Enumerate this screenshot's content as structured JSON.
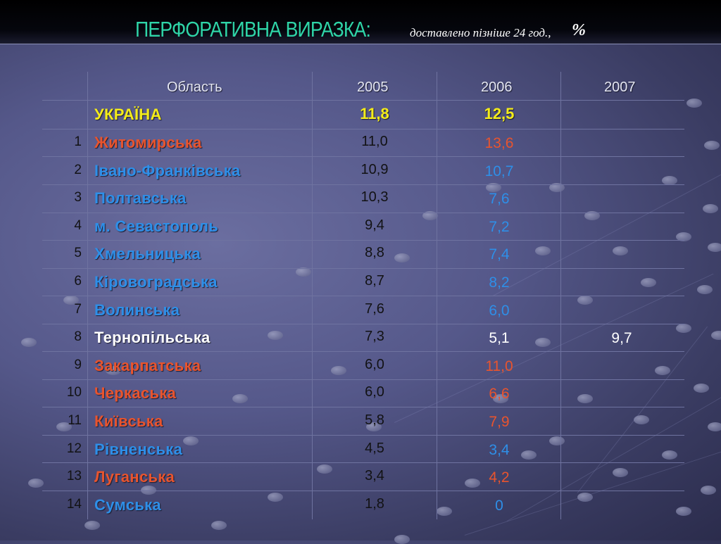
{
  "title": {
    "main": "ПЕРФОРАТИВНА  ВИРАЗКА:",
    "subtitle": "доставлено пізніше 24 год.,",
    "unit": "%"
  },
  "table": {
    "headers": [
      "Область",
      "2005",
      "2006",
      "2007"
    ],
    "total": {
      "name": "УКРАЇНА",
      "v2005": "11,8",
      "v2006": "12,5",
      "v2007": ""
    },
    "rows": [
      {
        "num": "1",
        "name": "Житомирська",
        "v2005": "11,0",
        "v2006": "13,6",
        "v2007": "",
        "name_color": "#e8542e",
        "v2006_color": "#e8542e"
      },
      {
        "num": "2",
        "name": "Івано-Франківська",
        "v2005": "10,9",
        "v2006": "10,7",
        "v2007": "",
        "name_color": "#2e8fe8",
        "v2006_color": "#2e8fe8"
      },
      {
        "num": "3",
        "name": "Полтавська",
        "v2005": "10,3",
        "v2006": "7,6",
        "v2007": "",
        "name_color": "#2e8fe8",
        "v2006_color": "#2e8fe8"
      },
      {
        "num": "4",
        "name": "м. Севастополь",
        "v2005": "9,4",
        "v2006": "7,2",
        "v2007": "",
        "name_color": "#2e8fe8",
        "v2006_color": "#2e8fe8"
      },
      {
        "num": "5",
        "name": "Хмельницька",
        "v2005": "8,8",
        "v2006": "7,4",
        "v2007": "",
        "name_color": "#2e8fe8",
        "v2006_color": "#2e8fe8"
      },
      {
        "num": "6",
        "name": "Кіровоградська",
        "v2005": "8,7",
        "v2006": "8,2",
        "v2007": "",
        "name_color": "#2e8fe8",
        "v2006_color": "#2e8fe8"
      },
      {
        "num": "7",
        "name": "Волинська",
        "v2005": "7,6",
        "v2006": "6,0",
        "v2007": "",
        "name_color": "#2e8fe8",
        "v2006_color": "#2e8fe8"
      },
      {
        "num": "8",
        "name": "Тернопільська",
        "v2005": "7,3",
        "v2006": "5,1",
        "v2007": "9,7",
        "name_color": "#ffffff",
        "v2006_color": "#ffffff"
      },
      {
        "num": "9",
        "name": "Закарпатська",
        "v2005": "6,0",
        "v2006": "11,0",
        "v2007": "",
        "name_color": "#e8542e",
        "v2006_color": "#e8542e"
      },
      {
        "num": "10",
        "name": "Черкаська",
        "v2005": "6,0",
        "v2006": "6,6",
        "v2007": "",
        "name_color": "#e8542e",
        "v2006_color": "#e8542e"
      },
      {
        "num": "11",
        "name": "Київська",
        "v2005": "5,8",
        "v2006": "7,9",
        "v2007": "",
        "name_color": "#e8542e",
        "v2006_color": "#e8542e"
      },
      {
        "num": "12",
        "name": "Рівненська",
        "v2005": "4,5",
        "v2006": "3,4",
        "v2007": "",
        "name_color": "#2e8fe8",
        "v2006_color": "#2e8fe8"
      },
      {
        "num": "13",
        "name": "Луганська",
        "v2005": "3,4",
        "v2006": "4,2",
        "v2007": "",
        "name_color": "#e8542e",
        "v2006_color": "#e8542e"
      },
      {
        "num": "14",
        "name": "Сумська",
        "v2005": "1,8",
        "v2006": "0",
        "v2007": "",
        "name_color": "#2e8fe8",
        "v2006_color": "#2e8fe8"
      }
    ]
  },
  "colors": {
    "title_accent": "#2fd5a8",
    "total_text": "#f4ec1a",
    "header_text": "#e4e6f2"
  }
}
